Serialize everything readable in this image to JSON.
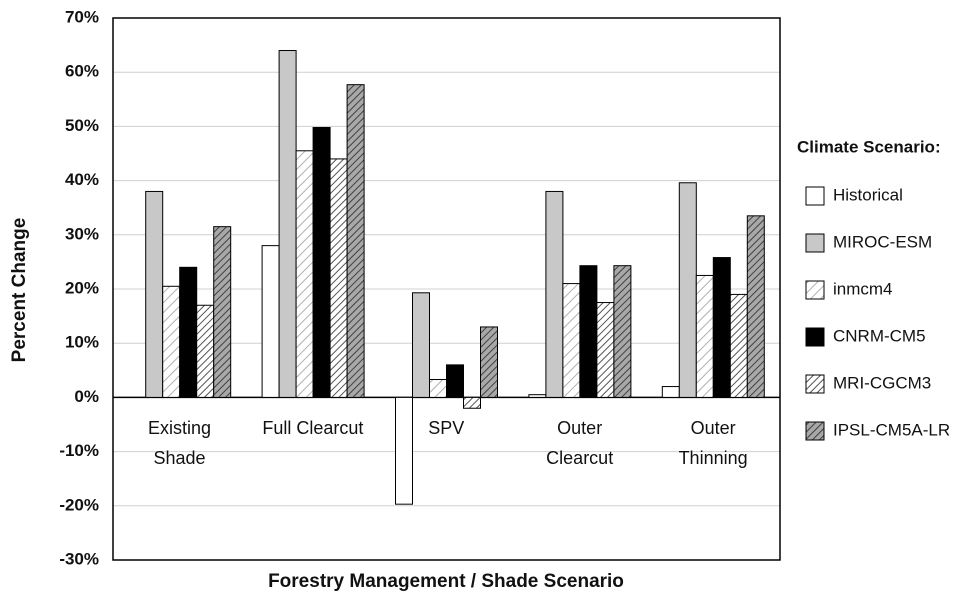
{
  "chart_data": {
    "type": "bar",
    "xlabel": "Forestry Management / Shade Scenario",
    "ylabel": "Percent Change",
    "legend_title": "Climate Scenario:",
    "legend": "right",
    "grid": true,
    "categories": [
      "Existing\nShade",
      "Full Clearcut",
      "SPV",
      "Outer\nClearcut",
      "Outer\nThinning"
    ],
    "ylim": [
      -30,
      70
    ],
    "yticks": [
      {
        "value": -30,
        "label": "-30%"
      },
      {
        "value": -20,
        "label": "-20%"
      },
      {
        "value": -10,
        "label": "-10%"
      },
      {
        "value": 0,
        "label": "0%"
      },
      {
        "value": 10,
        "label": "10%"
      },
      {
        "value": 20,
        "label": "20%"
      },
      {
        "value": 30,
        "label": "30%"
      },
      {
        "value": 40,
        "label": "40%"
      },
      {
        "value": 50,
        "label": "50%"
      },
      {
        "value": 60,
        "label": "60%"
      },
      {
        "value": 70,
        "label": "70%"
      }
    ],
    "series": [
      {
        "name": "Historical",
        "color": "#ffffff",
        "values": [
          0,
          28,
          -19.7,
          0.5,
          2
        ]
      },
      {
        "name": "MIROC-ESM",
        "color": "#c8c8c8",
        "values": [
          38,
          64,
          19.3,
          38,
          39.6
        ]
      },
      {
        "name": "inmcm4",
        "color": "#ffffff",
        "hatch": "#b0b0b0",
        "values": [
          20.5,
          45.5,
          3.3,
          21,
          22.5
        ]
      },
      {
        "name": "CNRM-CM5",
        "color": "#000000",
        "values": [
          24,
          49.8,
          6,
          24.3,
          25.8
        ]
      },
      {
        "name": "MRI-CGCM3",
        "color": "#ffffff",
        "hatch": "#555555",
        "values": [
          17,
          44,
          -2,
          17.5,
          19
        ]
      },
      {
        "name": "IPSL-CM5A-LR",
        "color": "#a8a8a8",
        "hatch": "#404040",
        "values": [
          31.5,
          57.7,
          13,
          24.3,
          33.5
        ]
      }
    ]
  }
}
